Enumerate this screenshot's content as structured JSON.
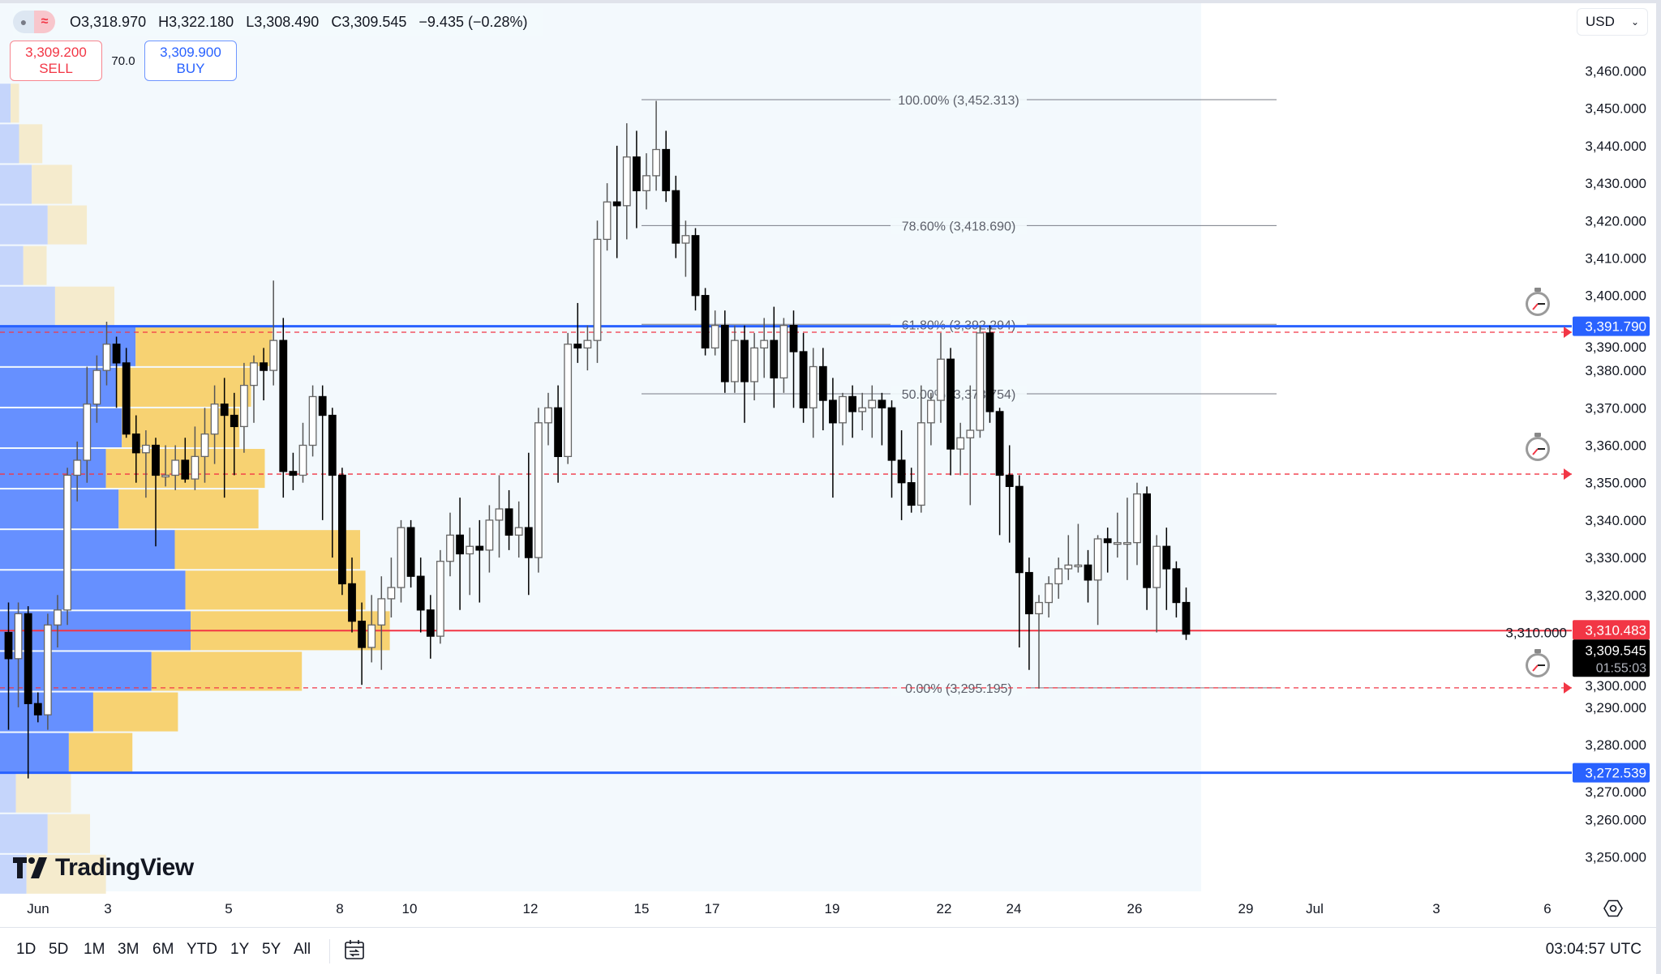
{
  "legend": {
    "open_label": "O",
    "open": "3,318.970",
    "high_label": "H",
    "high": "3,322.180",
    "low_label": "L",
    "low": "3,308.490",
    "close_label": "C",
    "close": "3,309.545",
    "change": "−9.435 (−0.28%)"
  },
  "trade": {
    "sell_price": "3,309.200",
    "sell_label": "SELL",
    "spread": "70.0",
    "buy_price": "3,309.900",
    "buy_label": "BUY"
  },
  "currency": "USD",
  "logo_text": "TradingView",
  "colors": {
    "chart_bg": "#f3f9fd",
    "up_candle": "#ffffff",
    "down_candle": "#000000",
    "blue_line": "#2962ff",
    "red_line": "#f23645",
    "vp_up_value_area": "#6690ff",
    "vp_down_value_area": "#f7d272",
    "vp_up": "#c5d5fb",
    "vp_down": "#f5ebcd"
  },
  "chart_data": {
    "type": "candlestick",
    "ylim": [
      3240,
      3466
    ],
    "price_ticks": [
      "3,460.000",
      "3,450.000",
      "3,440.000",
      "3,430.000",
      "3,420.000",
      "3,410.000",
      "3,400.000",
      "3,390.000",
      "3,380.000",
      "3,370.000",
      "3,360.000",
      "3,350.000",
      "3,340.000",
      "3,330.000",
      "3,320.000",
      "3,310.000",
      "3,300.000",
      "3,290.000",
      "3,280.000",
      "3,270.000",
      "3,260.000",
      "3,250.000"
    ],
    "price_tick_values": [
      3460,
      3450,
      3440,
      3430,
      3420,
      3410,
      3400,
      3390,
      3380,
      3370,
      3360,
      3350,
      3340,
      3330,
      3320,
      3310,
      3300,
      3290,
      3280,
      3270,
      3260,
      3250
    ],
    "date_ticks": [
      "Jun",
      "3",
      "5",
      "8",
      "10",
      "12",
      "15",
      "17",
      "19",
      "22",
      "24",
      "26",
      "29",
      "Jul",
      "3",
      "6"
    ],
    "candles_ohlc": [
      [
        3310,
        3318,
        3284,
        3303
      ],
      [
        3303,
        3318,
        3290,
        3315
      ],
      [
        3315,
        3317,
        3271,
        3291
      ],
      [
        3291,
        3294,
        3286,
        3288
      ],
      [
        3288,
        3315,
        3284,
        3312
      ],
      [
        3312,
        3320,
        3306,
        3316
      ],
      [
        3316,
        3354,
        3312,
        3352
      ],
      [
        3352,
        3361,
        3345,
        3356
      ],
      [
        3356,
        3381,
        3350,
        3371
      ],
      [
        3371,
        3384,
        3366,
        3380
      ],
      [
        3380,
        3393,
        3376,
        3387
      ],
      [
        3387,
        3389,
        3370,
        3382
      ],
      [
        3382,
        3386,
        3362,
        3363
      ],
      [
        3363,
        3368,
        3350,
        3358
      ],
      [
        3358,
        3364,
        3346,
        3360
      ],
      [
        3360,
        3362,
        3333,
        3352
      ],
      [
        3352,
        3360,
        3349,
        3352
      ],
      [
        3352,
        3360,
        3348,
        3356
      ],
      [
        3356,
        3362,
        3350,
        3351
      ],
      [
        3351,
        3365,
        3348,
        3357
      ],
      [
        3357,
        3370,
        3350,
        3363
      ],
      [
        3363,
        3376,
        3355,
        3371
      ],
      [
        3371,
        3378,
        3346,
        3368
      ],
      [
        3368,
        3374,
        3352,
        3365
      ],
      [
        3365,
        3382,
        3358,
        3376
      ],
      [
        3376,
        3384,
        3366,
        3382
      ],
      [
        3382,
        3386,
        3372,
        3380
      ],
      [
        3380,
        3404,
        3376,
        3388
      ],
      [
        3388,
        3394,
        3346,
        3353
      ],
      [
        3353,
        3358,
        3348,
        3352
      ],
      [
        3352,
        3366,
        3350,
        3360
      ],
      [
        3360,
        3376,
        3357,
        3373
      ],
      [
        3373,
        3376,
        3340,
        3368
      ],
      [
        3368,
        3370,
        3330,
        3352
      ],
      [
        3352,
        3354,
        3320,
        3323
      ],
      [
        3323,
        3330,
        3310,
        3313
      ],
      [
        3313,
        3318,
        3296,
        3306
      ],
      [
        3306,
        3320,
        3302,
        3312
      ],
      [
        3312,
        3325,
        3300,
        3319
      ],
      [
        3319,
        3330,
        3314,
        3322
      ],
      [
        3322,
        3340,
        3318,
        3338
      ],
      [
        3338,
        3340,
        3322,
        3325
      ],
      [
        3325,
        3330,
        3310,
        3316
      ],
      [
        3316,
        3320,
        3303,
        3309
      ],
      [
        3309,
        3332,
        3307,
        3329
      ],
      [
        3329,
        3342,
        3325,
        3336
      ],
      [
        3336,
        3346,
        3316,
        3331
      ],
      [
        3331,
        3338,
        3320,
        3333
      ],
      [
        3333,
        3340,
        3318,
        3332
      ],
      [
        3332,
        3344,
        3326,
        3340
      ],
      [
        3340,
        3352,
        3330,
        3343
      ],
      [
        3343,
        3348,
        3332,
        3336
      ],
      [
        3336,
        3345,
        3330,
        3338
      ],
      [
        3338,
        3358,
        3320,
        3330
      ],
      [
        3330,
        3370,
        3326,
        3366
      ],
      [
        3366,
        3374,
        3360,
        3370
      ],
      [
        3370,
        3376,
        3350,
        3357
      ],
      [
        3357,
        3390,
        3355,
        3387
      ],
      [
        3387,
        3398,
        3382,
        3386
      ],
      [
        3386,
        3392,
        3380,
        3388
      ],
      [
        3388,
        3420,
        3382,
        3415
      ],
      [
        3415,
        3430,
        3412,
        3425
      ],
      [
        3425,
        3440,
        3410,
        3424
      ],
      [
        3424,
        3446,
        3415,
        3437
      ],
      [
        3437,
        3444,
        3418,
        3428
      ],
      [
        3428,
        3438,
        3423,
        3432
      ],
      [
        3432,
        3452,
        3428,
        3439
      ],
      [
        3439,
        3444,
        3425,
        3428
      ],
      [
        3428,
        3432,
        3410,
        3414
      ],
      [
        3414,
        3420,
        3405,
        3416
      ],
      [
        3416,
        3418,
        3396,
        3400
      ],
      [
        3400,
        3402,
        3384,
        3386
      ],
      [
        3386,
        3396,
        3384,
        3392
      ],
      [
        3392,
        3396,
        3374,
        3377
      ],
      [
        3377,
        3392,
        3374,
        3388
      ],
      [
        3388,
        3392,
        3366,
        3377
      ],
      [
        3377,
        3390,
        3372,
        3386
      ],
      [
        3386,
        3394,
        3378,
        3388
      ],
      [
        3388,
        3397,
        3370,
        3378
      ],
      [
        3378,
        3394,
        3374,
        3392
      ],
      [
        3392,
        3396,
        3370,
        3385
      ],
      [
        3385,
        3390,
        3366,
        3370
      ],
      [
        3370,
        3386,
        3362,
        3381
      ],
      [
        3381,
        3386,
        3364,
        3372
      ],
      [
        3372,
        3378,
        3346,
        3366
      ],
      [
        3366,
        3374,
        3360,
        3373
      ],
      [
        3373,
        3376,
        3362,
        3369
      ],
      [
        3369,
        3374,
        3364,
        3370
      ],
      [
        3370,
        3376,
        3362,
        3372
      ],
      [
        3372,
        3374,
        3360,
        3370
      ],
      [
        3370,
        3372,
        3346,
        3356
      ],
      [
        3356,
        3364,
        3340,
        3350
      ],
      [
        3350,
        3354,
        3342,
        3344
      ],
      [
        3344,
        3376,
        3342,
        3366
      ],
      [
        3366,
        3374,
        3360,
        3372
      ],
      [
        3372,
        3390,
        3366,
        3383
      ],
      [
        3383,
        3386,
        3352,
        3359
      ],
      [
        3359,
        3366,
        3352,
        3362
      ],
      [
        3362,
        3376,
        3344,
        3364
      ],
      [
        3364,
        3392,
        3362,
        3390
      ],
      [
        3390,
        3392,
        3366,
        3369
      ],
      [
        3369,
        3370,
        3336,
        3352
      ],
      [
        3352,
        3360,
        3334,
        3349
      ],
      [
        3349,
        3352,
        3306,
        3326
      ],
      [
        3326,
        3330,
        3300,
        3315
      ],
      [
        3315,
        3320,
        3295,
        3318
      ],
      [
        3318,
        3325,
        3314,
        3323
      ],
      [
        3323,
        3330,
        3319,
        3327
      ],
      [
        3327,
        3336,
        3324,
        3328
      ],
      [
        3328,
        3339,
        3326,
        3328
      ],
      [
        3328,
        3332,
        3318,
        3324
      ],
      [
        3324,
        3336,
        3312,
        3335
      ],
      [
        3335,
        3338,
        3326,
        3334
      ],
      [
        3334,
        3342,
        3330,
        3334
      ],
      [
        3334,
        3346,
        3324,
        3334
      ],
      [
        3334,
        3350,
        3328,
        3347
      ],
      [
        3347,
        3349,
        3316,
        3322
      ],
      [
        3322,
        3336,
        3310,
        3333
      ],
      [
        3333,
        3338,
        3316,
        3327
      ],
      [
        3327,
        3329,
        3314,
        3318
      ],
      [
        3318,
        3322,
        3308,
        3309.545
      ]
    ],
    "volume_profile": {
      "row_top_price": 3456.8,
      "row_step": 10.84,
      "value_area": [
        3272.539,
        3391.79
      ],
      "rows_up_down": [
        [
          10,
          8
        ],
        [
          18,
          22
        ],
        [
          30,
          38
        ],
        [
          45,
          37
        ],
        [
          22,
          22
        ],
        [
          52,
          56
        ],
        [
          128,
          129
        ],
        [
          110,
          127
        ],
        [
          115,
          111
        ],
        [
          100,
          150
        ],
        [
          112,
          132
        ],
        [
          165,
          175
        ],
        [
          175,
          170
        ],
        [
          180,
          188
        ],
        [
          143,
          142
        ],
        [
          88,
          80
        ],
        [
          65,
          60
        ],
        [
          15,
          52
        ],
        [
          45,
          40
        ],
        [
          25,
          75
        ]
      ]
    },
    "fibonacci": [
      {
        "label": "100.00% (3,452.313)",
        "price": 3452.313
      },
      {
        "label": "78.60% (3,418.690)",
        "price": 3418.69
      },
      {
        "label": "61.80% (3,392.294)",
        "price": 3392.294
      },
      {
        "label": "50.00% (3,373.754)",
        "price": 3373.754
      },
      {
        "label": "0.00% (3,295.195)",
        "price": 3295.195
      }
    ],
    "horizontal_lines": [
      {
        "price": 3391.79,
        "color": "#2962ff",
        "style": "solid",
        "tag": "3,391.790"
      },
      {
        "price": 3272.539,
        "color": "#2962ff",
        "style": "solid",
        "tag": "3,272.539"
      },
      {
        "price": 3310.483,
        "color": "#f23645",
        "style": "solid",
        "tag": "3,310.483"
      },
      {
        "price": 3390.2,
        "color": "#f23645",
        "style": "dashed"
      },
      {
        "price": 3352.3,
        "color": "#f23645",
        "style": "dashed"
      },
      {
        "price": 3295.195,
        "color": "#f23645",
        "style": "dashed"
      }
    ],
    "last_price": {
      "value": "3,309.545",
      "countdown": "01:55:03",
      "price": 3309.545
    },
    "alert_icons": [
      "stopwatch-icon",
      "stopwatch-icon",
      "stopwatch-icon"
    ]
  },
  "toolbar": {
    "ranges": [
      "1D",
      "5D",
      "1M",
      "3M",
      "6M",
      "YTD",
      "1Y",
      "5Y",
      "All"
    ],
    "clock": "03:04:57 UTC"
  }
}
